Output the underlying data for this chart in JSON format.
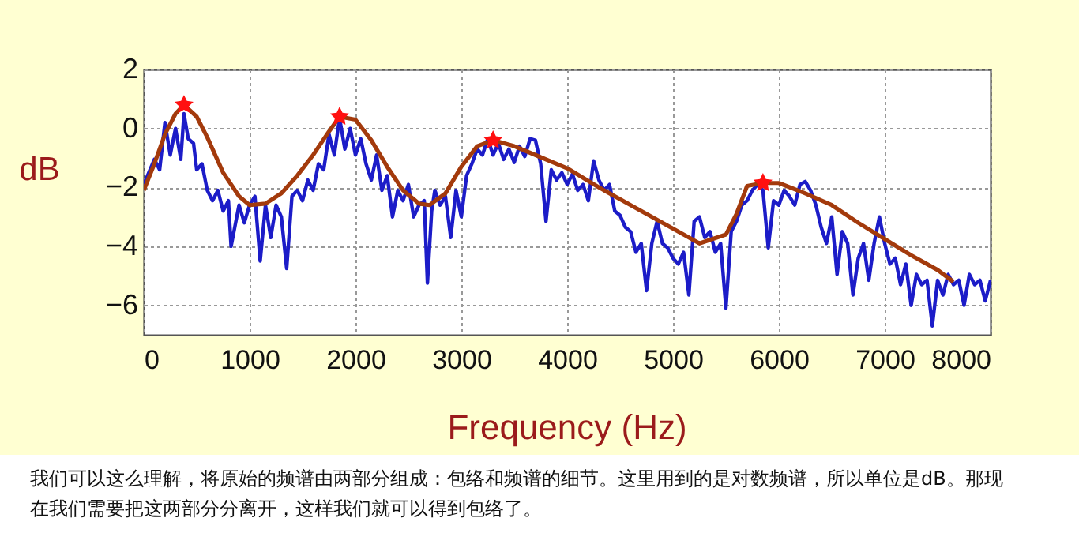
{
  "chart_data": {
    "type": "line",
    "xlabel": "Frequency (Hz)",
    "ylabel": "dB",
    "xlim": [
      0,
      8000
    ],
    "xticks": [
      0,
      1000,
      2000,
      3000,
      4000,
      5000,
      6000,
      7000,
      8000
    ],
    "ylim": [
      -7,
      2
    ],
    "yticks": [
      -6,
      -4,
      -2,
      0,
      2
    ],
    "grid": true,
    "annotations": [
      "我们可以这么理解，将原始的频谱由两部分组成：包络和频谱的细节。这里用到的是对数频谱，所以单位是dB。那现在我们需要把这两部分分离开，这样我们就可以得到包络了。"
    ],
    "series": [
      {
        "color": "#1c1cc8",
        "marker": "none",
        "line_style": "solid",
        "x": [
          0,
          100,
          150,
          200,
          250,
          300,
          350,
          380,
          420,
          470,
          500,
          550,
          600,
          650,
          700,
          750,
          800,
          825,
          900,
          950,
          1000,
          1050,
          1100,
          1150,
          1200,
          1250,
          1300,
          1350,
          1400,
          1450,
          1500,
          1550,
          1600,
          1650,
          1700,
          1750,
          1800,
          1850,
          1900,
          1950,
          2000,
          2050,
          2100,
          2150,
          2200,
          2250,
          2300,
          2350,
          2400,
          2450,
          2500,
          2550,
          2600,
          2650,
          2680,
          2720,
          2750,
          2800,
          2850,
          2900,
          2950,
          3000,
          3050,
          3100,
          3150,
          3200,
          3250,
          3300,
          3350,
          3400,
          3450,
          3500,
          3550,
          3600,
          3650,
          3700,
          3750,
          3800,
          3850,
          3900,
          3950,
          4000,
          4050,
          4100,
          4150,
          4200,
          4250,
          4300,
          4350,
          4400,
          4450,
          4500,
          4550,
          4600,
          4650,
          4700,
          4750,
          4800,
          4850,
          4900,
          4950,
          5000,
          5050,
          5100,
          5150,
          5200,
          5250,
          5300,
          5350,
          5400,
          5450,
          5500,
          5550,
          5600,
          5650,
          5700,
          5750,
          5800,
          5850,
          5900,
          5950,
          6000,
          6050,
          6100,
          6150,
          6200,
          6250,
          6300,
          6350,
          6400,
          6450,
          6500,
          6550,
          6600,
          6650,
          6700,
          6750,
          6800,
          6850,
          6900,
          6950,
          7000,
          7050,
          7100,
          7150,
          7200,
          7250,
          7300,
          7350,
          7400,
          7450,
          7500,
          7550,
          7600,
          7650,
          7700,
          7750,
          7800,
          7850,
          7900,
          7950,
          8000
        ],
        "values": [
          -1.9,
          -1.05,
          -1.4,
          0.2,
          -0.9,
          0,
          -1.05,
          0.5,
          -0.35,
          -0.5,
          -1.4,
          -1.2,
          -2.1,
          -2.45,
          -2.1,
          -2.8,
          -2.45,
          -4.0,
          -2.6,
          -3.2,
          -2.6,
          -2.3,
          -4.5,
          -2.6,
          -3.7,
          -2.6,
          -3.0,
          -4.75,
          -2.3,
          -2.1,
          -2.45,
          -1.75,
          -2.1,
          -1.2,
          -1.4,
          -0.2,
          -0.9,
          0.35,
          -0.7,
          0,
          -0.9,
          -0.35,
          -1.2,
          -1.75,
          -0.9,
          -2.1,
          -1.6,
          -3.0,
          -2.1,
          -2.45,
          -1.9,
          -3.0,
          -2.6,
          -2.45,
          -5.25,
          -2.8,
          -2.1,
          -2.6,
          -2.3,
          -3.7,
          -2.1,
          -3.0,
          -1.6,
          -1.2,
          -0.7,
          -0.9,
          -0.35,
          -0.9,
          -0.5,
          -1.05,
          -0.7,
          -1.15,
          -0.6,
          -0.95,
          -0.35,
          -0.4,
          -1.2,
          -3.15,
          -1.4,
          -1.75,
          -1.5,
          -1.9,
          -1.55,
          -2.1,
          -1.9,
          -2.45,
          -1.1,
          -1.75,
          -2.1,
          -1.9,
          -2.8,
          -2.95,
          -3.35,
          -3.5,
          -4.2,
          -3.9,
          -5.5,
          -3.9,
          -3.15,
          -3.9,
          -4.05,
          -4.4,
          -4.6,
          -4.2,
          -5.65,
          -3.15,
          -3.0,
          -3.7,
          -3.5,
          -4.2,
          -3.9,
          -6.1,
          -3.5,
          -3.15,
          -2.6,
          -2.45,
          -2.1,
          -1.9,
          -2.1,
          -4.05,
          -2.45,
          -2.6,
          -2.1,
          -2.3,
          -2.6,
          -1.9,
          -1.8,
          -2.1,
          -2.6,
          -3.35,
          -3.9,
          -3.0,
          -4.95,
          -3.5,
          -3.9,
          -5.65,
          -4.4,
          -3.9,
          -5.15,
          -3.9,
          -3.0,
          -3.9,
          -4.6,
          -4.4,
          -5.3,
          -4.6,
          -6.0,
          -4.95,
          -5.3,
          -5.15,
          -6.7,
          -5.15,
          -5.65,
          -4.95,
          -5.3,
          -5.15,
          -6.0,
          -4.95,
          -5.3,
          -5.15,
          -5.85,
          -5.15
        ]
      },
      {
        "color": "#a33a0c",
        "marker": "none",
        "line_style": "solid",
        "x": [
          0,
          100,
          200,
          300,
          380,
          500,
          600,
          750,
          900,
          1000,
          1150,
          1300,
          1450,
          1600,
          1750,
          1850,
          2000,
          2150,
          2300,
          2450,
          2600,
          2700,
          2850,
          3000,
          3150,
          3300,
          3500,
          3700,
          4000,
          4300,
          4600,
          5000,
          5250,
          5500,
          5600,
          5700,
          5850,
          6000,
          6250,
          6500,
          6750,
          7000,
          7250,
          7500,
          7650
        ],
        "values": [
          -2.1,
          -1.2,
          -0.2,
          0.5,
          0.8,
          0.4,
          -0.3,
          -1.5,
          -2.3,
          -2.6,
          -2.55,
          -2.2,
          -1.6,
          -0.9,
          -0.1,
          0.4,
          0.3,
          -0.4,
          -1.3,
          -2.1,
          -2.55,
          -2.6,
          -2.2,
          -1.3,
          -0.6,
          -0.4,
          -0.6,
          -0.9,
          -1.35,
          -2.0,
          -2.6,
          -3.4,
          -3.9,
          -3.6,
          -2.9,
          -1.95,
          -1.85,
          -1.85,
          -2.2,
          -2.6,
          -3.2,
          -3.75,
          -4.3,
          -4.8,
          -5.2
        ]
      },
      {
        "type": "scatter",
        "color": "#ff1010",
        "marker": "star",
        "x": [
          380,
          1850,
          3300,
          5850
        ],
        "values": [
          0.8,
          0.4,
          -0.4,
          -1.85
        ]
      }
    ]
  }
}
